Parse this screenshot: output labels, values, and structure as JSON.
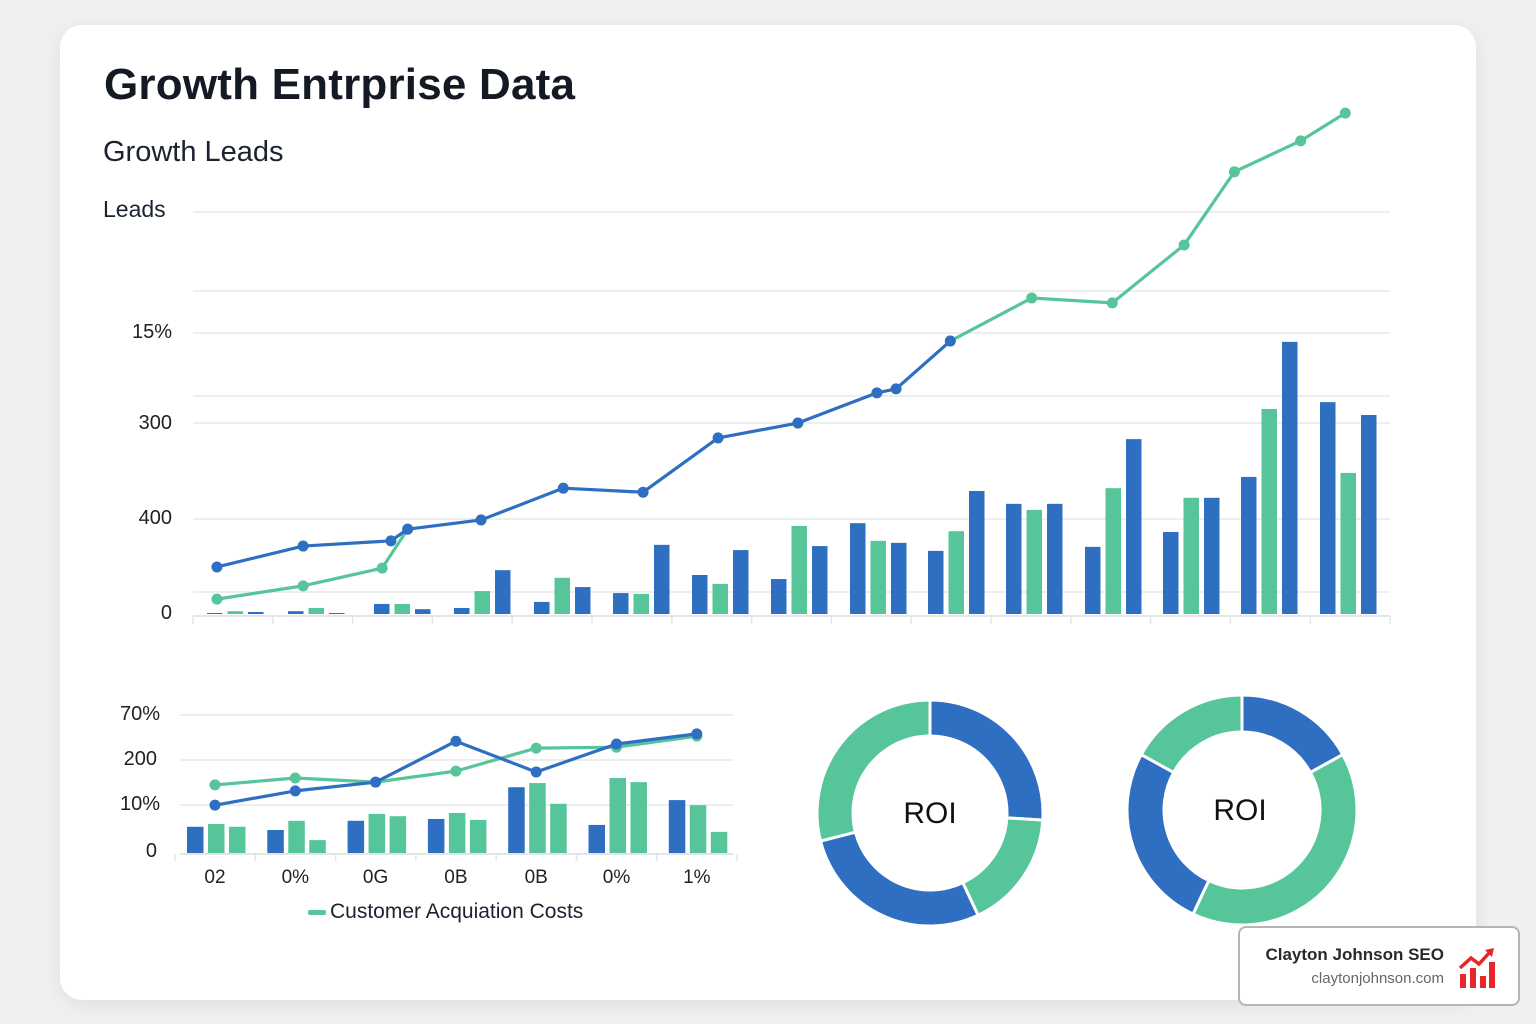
{
  "header": {
    "title": "Growth Entrprise Data",
    "subtitle": "Growth Leads"
  },
  "colors": {
    "blue": "#2f6fc1",
    "green": "#56c59a",
    "grid": "#e6e8eb"
  },
  "chart_data": [
    {
      "type": "bar+line",
      "ylabel": "Leads",
      "ytick_labels": [
        "15%",
        "300",
        "400",
        "0"
      ],
      "grid": true,
      "ylim": [
        0,
        125
      ],
      "bar_colors": [
        "blue",
        "green",
        "blue"
      ],
      "bars": [
        [
          0.2,
          0.7,
          0.5
        ],
        [
          0.7,
          1.5,
          0.2
        ],
        [
          2.5,
          2.5,
          1.2
        ],
        [
          1.5,
          5.7,
          10.9
        ],
        [
          3,
          9,
          6.7
        ],
        [
          5.2,
          5,
          17.2
        ],
        [
          9.7,
          7.5,
          15.9
        ],
        [
          8.7,
          21.9,
          16.9
        ],
        [
          22.6,
          18.2,
          17.7
        ],
        [
          15.7,
          20.6,
          30.6
        ],
        [
          27.4,
          25.9,
          27.4
        ],
        [
          16.7,
          31.3,
          43.5
        ],
        [
          20.4,
          28.9,
          28.9
        ],
        [
          34.1,
          51,
          67.7
        ],
        [
          52.7,
          35.1,
          49.5
        ]
      ],
      "lines": [
        {
          "color": "green",
          "segments": [
            {
              "x": [
                0.3,
                1.38,
                2.37,
                2.69
              ],
              "y": [
                3.7,
                7,
                11.4,
                21.1
              ]
            },
            {
              "x": [
                9.49,
                10.51,
                11.52,
                12.42,
                13.05,
                13.88,
                14.44
              ],
              "y": [
                67.9,
                78.6,
                77.4,
                91.8,
                110,
                117.7,
                124.6
              ]
            }
          ]
        },
        {
          "color": "blue",
          "segments": [
            {
              "x": [
                0.3,
                1.38,
                2.48,
                2.69,
                3.61,
                4.64,
                5.64,
                6.58,
                7.58,
                8.57,
                8.81,
                9.49
              ],
              "y": [
                11.7,
                16.9,
                18.2,
                21.1,
                23.4,
                31.3,
                30.3,
                43.8,
                47.5,
                55,
                56,
                67.9
              ]
            }
          ]
        }
      ]
    },
    {
      "type": "bar+line",
      "ytick_labels": [
        "70%",
        "200",
        "10%",
        "0"
      ],
      "categories": [
        "02",
        "0%",
        "0G",
        "0B",
        "0B",
        "0%",
        "1%"
      ],
      "grid": true,
      "ylim": [
        0,
        30
      ],
      "legend": {
        "label": "Customer Acquiation Costs",
        "color": "green",
        "placement": "bottom"
      },
      "bar_colors": [
        "blue",
        "green",
        "green"
      ],
      "bars": [
        [
          5.7,
          6.3,
          5.7
        ],
        [
          5,
          7,
          2.8
        ],
        [
          7,
          8.5,
          8
        ],
        [
          7.4,
          8.7,
          7.2
        ],
        [
          14.3,
          15.2,
          10.7
        ],
        [
          6.1,
          16.3,
          15.4
        ],
        [
          11.5,
          10.4,
          4.6
        ]
      ],
      "lines": [
        {
          "color": "green",
          "y": [
            14.8,
            16.3,
            15.4,
            17.8,
            22.8,
            23,
            25.4
          ]
        },
        {
          "color": "blue",
          "y": [
            10.4,
            13.5,
            15.4,
            24.3,
            17.6,
            23.7,
            25.9
          ]
        }
      ]
    },
    {
      "type": "pie",
      "label": "ROI",
      "donut": true,
      "slices": [
        {
          "value": 26,
          "color": "blue"
        },
        {
          "value": 17,
          "color": "green"
        },
        {
          "value": 28,
          "color": "blue"
        },
        {
          "value": 29,
          "color": "green"
        }
      ]
    },
    {
      "type": "pie",
      "label": "ROI",
      "donut": true,
      "slices": [
        {
          "value": 17,
          "color": "blue"
        },
        {
          "value": 40,
          "color": "green"
        },
        {
          "value": 26,
          "color": "blue"
        },
        {
          "value": 17,
          "color": "green"
        }
      ]
    }
  ],
  "brand": {
    "name": "Clayton Johnson SEO",
    "url": "claytonjohnson.com",
    "icon": "chart-up-icon",
    "color": "#e8262a"
  }
}
